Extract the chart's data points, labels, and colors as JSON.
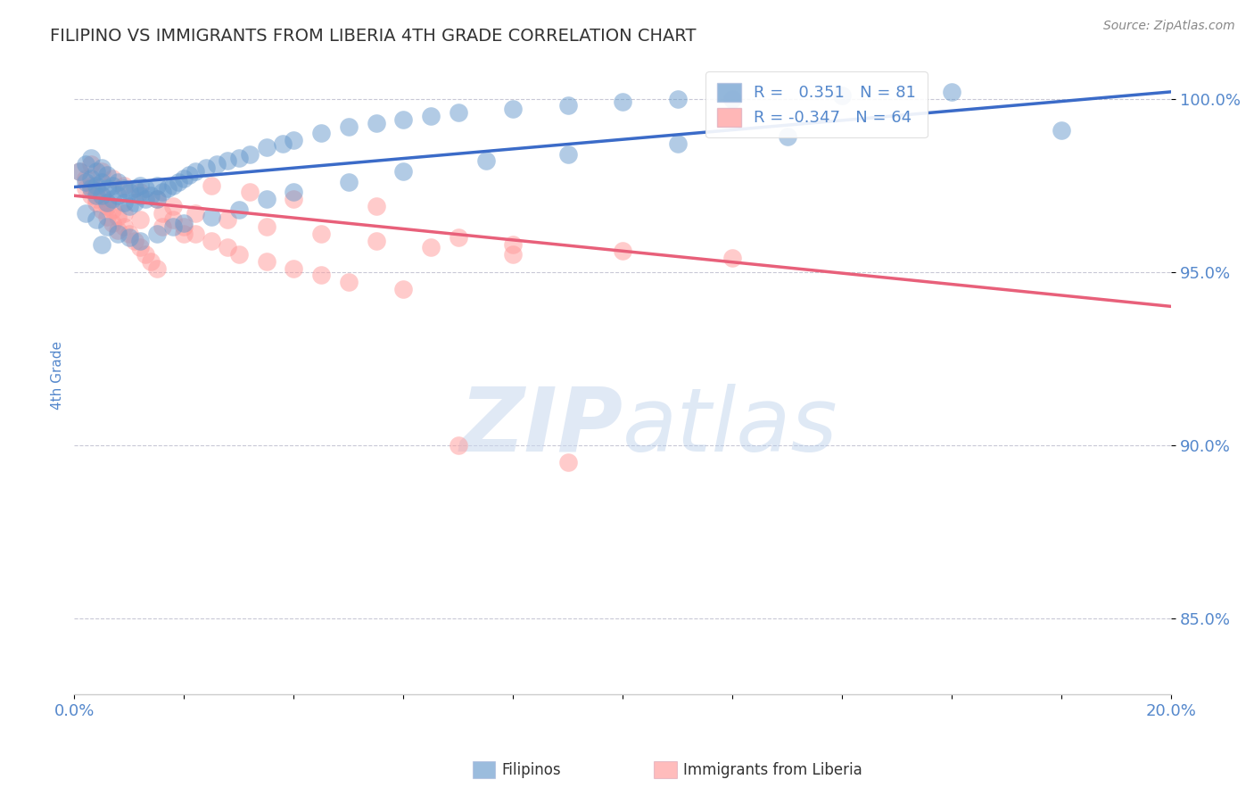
{
  "title": "FILIPINO VS IMMIGRANTS FROM LIBERIA 4TH GRADE CORRELATION CHART",
  "source_text": "Source: ZipAtlas.com",
  "ylabel": "4th Grade",
  "xlim": [
    0.0,
    0.2
  ],
  "ylim": [
    0.828,
    1.012
  ],
  "xticks": [
    0.0,
    0.02,
    0.04,
    0.06,
    0.08,
    0.1,
    0.12,
    0.14,
    0.16,
    0.18,
    0.2
  ],
  "xticklabels": [
    "0.0%",
    "",
    "",
    "",
    "",
    "",
    "",
    "",
    "",
    "",
    "20.0%"
  ],
  "ytick_positions": [
    0.85,
    0.9,
    0.95,
    1.0
  ],
  "ytick_labels": [
    "85.0%",
    "90.0%",
    "95.0%",
    "100.0%"
  ],
  "blue_R": 0.351,
  "blue_N": 81,
  "pink_R": -0.347,
  "pink_N": 64,
  "blue_color": "#6699CC",
  "pink_color": "#FF9999",
  "blue_line_color": "#3B6BC8",
  "pink_line_color": "#E8607A",
  "legend_label_blue": "Filipinos",
  "legend_label_pink": "Immigrants from Liberia",
  "watermark_zip": "ZIP",
  "watermark_atlas": "atlas",
  "background_color": "#ffffff",
  "grid_color": "#bbbbcc",
  "title_color": "#333333",
  "axis_label_color": "#5588CC",
  "blue_line_x0": 0.0,
  "blue_line_y0": 0.9745,
  "blue_line_x1": 0.2,
  "blue_line_y1": 1.002,
  "pink_line_x0": 0.0,
  "pink_line_y0": 0.972,
  "pink_line_x1": 0.2,
  "pink_line_y1": 0.94,
  "blue_scatter_x": [
    0.001,
    0.002,
    0.002,
    0.003,
    0.003,
    0.003,
    0.004,
    0.004,
    0.004,
    0.005,
    0.005,
    0.005,
    0.006,
    0.006,
    0.006,
    0.007,
    0.007,
    0.008,
    0.008,
    0.009,
    0.009,
    0.01,
    0.01,
    0.011,
    0.011,
    0.012,
    0.012,
    0.013,
    0.013,
    0.014,
    0.015,
    0.015,
    0.016,
    0.017,
    0.018,
    0.019,
    0.02,
    0.021,
    0.022,
    0.024,
    0.026,
    0.028,
    0.03,
    0.032,
    0.035,
    0.038,
    0.04,
    0.045,
    0.05,
    0.055,
    0.06,
    0.065,
    0.07,
    0.08,
    0.09,
    0.1,
    0.11,
    0.12,
    0.14,
    0.16,
    0.002,
    0.004,
    0.006,
    0.008,
    0.01,
    0.012,
    0.015,
    0.018,
    0.02,
    0.025,
    0.03,
    0.035,
    0.04,
    0.05,
    0.06,
    0.075,
    0.09,
    0.11,
    0.13,
    0.18,
    0.005
  ],
  "blue_scatter_y": [
    0.979,
    0.981,
    0.976,
    0.983,
    0.977,
    0.974,
    0.979,
    0.975,
    0.972,
    0.98,
    0.976,
    0.972,
    0.978,
    0.974,
    0.97,
    0.975,
    0.971,
    0.976,
    0.972,
    0.974,
    0.97,
    0.973,
    0.969,
    0.974,
    0.97,
    0.972,
    0.975,
    0.971,
    0.974,
    0.972,
    0.975,
    0.971,
    0.973,
    0.974,
    0.975,
    0.976,
    0.977,
    0.978,
    0.979,
    0.98,
    0.981,
    0.982,
    0.983,
    0.984,
    0.986,
    0.987,
    0.988,
    0.99,
    0.992,
    0.993,
    0.994,
    0.995,
    0.996,
    0.997,
    0.998,
    0.999,
    1.0,
    1.0,
    1.001,
    1.002,
    0.967,
    0.965,
    0.963,
    0.961,
    0.96,
    0.959,
    0.961,
    0.963,
    0.964,
    0.966,
    0.968,
    0.971,
    0.973,
    0.976,
    0.979,
    0.982,
    0.984,
    0.987,
    0.989,
    0.991,
    0.958
  ],
  "pink_scatter_x": [
    0.001,
    0.002,
    0.002,
    0.003,
    0.003,
    0.004,
    0.004,
    0.005,
    0.005,
    0.006,
    0.006,
    0.007,
    0.007,
    0.008,
    0.008,
    0.009,
    0.01,
    0.011,
    0.012,
    0.013,
    0.014,
    0.015,
    0.016,
    0.018,
    0.02,
    0.022,
    0.025,
    0.028,
    0.03,
    0.035,
    0.04,
    0.045,
    0.05,
    0.06,
    0.07,
    0.08,
    0.1,
    0.12,
    0.003,
    0.005,
    0.007,
    0.009,
    0.012,
    0.015,
    0.018,
    0.022,
    0.028,
    0.035,
    0.045,
    0.055,
    0.065,
    0.08,
    0.004,
    0.006,
    0.009,
    0.012,
    0.016,
    0.02,
    0.025,
    0.032,
    0.04,
    0.055,
    0.07,
    0.09
  ],
  "pink_scatter_y": [
    0.979,
    0.977,
    0.974,
    0.975,
    0.972,
    0.974,
    0.97,
    0.972,
    0.968,
    0.97,
    0.966,
    0.968,
    0.964,
    0.966,
    0.962,
    0.963,
    0.961,
    0.959,
    0.957,
    0.955,
    0.953,
    0.951,
    0.967,
    0.965,
    0.963,
    0.961,
    0.959,
    0.957,
    0.955,
    0.953,
    0.951,
    0.949,
    0.947,
    0.945,
    0.96,
    0.958,
    0.956,
    0.954,
    0.981,
    0.979,
    0.977,
    0.975,
    0.973,
    0.971,
    0.969,
    0.967,
    0.965,
    0.963,
    0.961,
    0.959,
    0.957,
    0.955,
    0.971,
    0.969,
    0.967,
    0.965,
    0.963,
    0.961,
    0.975,
    0.973,
    0.971,
    0.969,
    0.9,
    0.895
  ]
}
